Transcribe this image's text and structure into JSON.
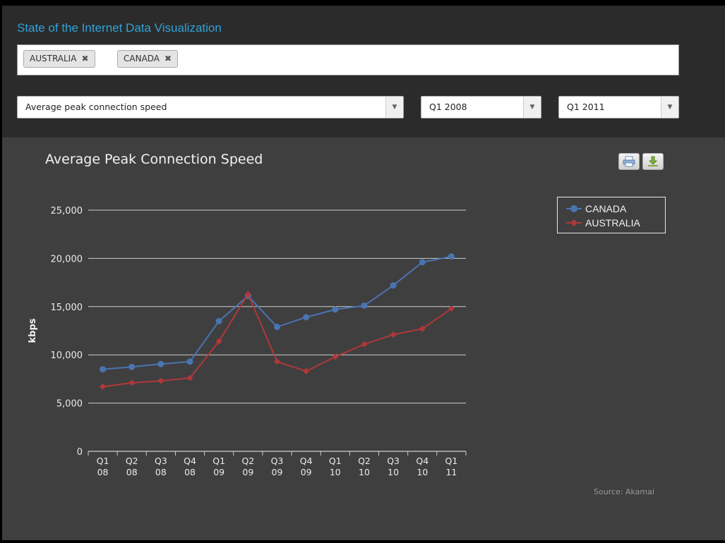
{
  "header": {
    "app_title": "State of the Internet Data Visualization",
    "tags": [
      {
        "label": "AUSTRALIA",
        "remove_icon": "close-icon"
      },
      {
        "label": "CANADA",
        "remove_icon": "close-icon"
      }
    ],
    "metric_select": {
      "value": "Average peak connection speed",
      "arrow_icon": "chevron-down-icon"
    },
    "start_select": {
      "value": "Q1 2008",
      "arrow_icon": "chevron-down-icon"
    },
    "end_select": {
      "value": "Q1 2011",
      "arrow_icon": "chevron-down-icon"
    }
  },
  "toolbar": {
    "print_icon": "print-icon",
    "download_icon": "download-icon"
  },
  "source_text": "Source: Akamai",
  "colors": {
    "canada": "#4a74b0",
    "australia": "#b03838",
    "title": "#2fa2d8"
  },
  "chart_data": {
    "type": "line",
    "title": "Average Peak Connection Speed",
    "xlabel": "",
    "ylabel": "kbps",
    "ylim": [
      0,
      25000
    ],
    "yticks": [
      "0",
      "5,000",
      "10,000",
      "15,000",
      "20,000",
      "25,000"
    ],
    "categories": [
      [
        "Q1",
        "08"
      ],
      [
        "Q2",
        "08"
      ],
      [
        "Q3",
        "08"
      ],
      [
        "Q4",
        "08"
      ],
      [
        "Q1",
        "09"
      ],
      [
        "Q2",
        "09"
      ],
      [
        "Q3",
        "09"
      ],
      [
        "Q4",
        "09"
      ],
      [
        "Q1",
        "10"
      ],
      [
        "Q2",
        "10"
      ],
      [
        "Q3",
        "10"
      ],
      [
        "Q4",
        "10"
      ],
      [
        "Q1",
        "11"
      ]
    ],
    "series": [
      {
        "name": "CANADA",
        "color": "#4a74b0",
        "marker": "circle",
        "values": [
          8500,
          8750,
          9050,
          9300,
          13500,
          16100,
          12900,
          13900,
          14700,
          15100,
          17200,
          19600,
          20200
        ]
      },
      {
        "name": "AUSTRALIA",
        "color": "#b03838",
        "marker": "diamond",
        "values": [
          6700,
          7100,
          7300,
          7600,
          11400,
          16300,
          9300,
          8300,
          9800,
          11100,
          12100,
          12700,
          14800
        ]
      }
    ],
    "grid": true,
    "legend": "top-right"
  }
}
